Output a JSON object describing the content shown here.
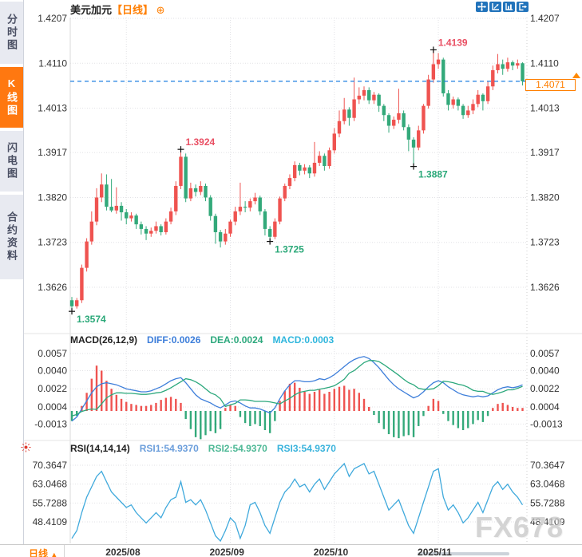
{
  "header": {
    "symbol": "美元加元",
    "period_tag": "【日线】",
    "add_icon": "⊕"
  },
  "toolbar": {
    "icons": [
      "pan-crosshair-icon",
      "axis-scale-icon",
      "axis-indicator-icon",
      "exit-icon"
    ]
  },
  "sidebar": {
    "items": [
      {
        "label": "分时图",
        "active": false
      },
      {
        "label": "K线图",
        "active": true
      },
      {
        "label": "闪电图",
        "active": false
      },
      {
        "label": "合约资料",
        "active": false
      }
    ]
  },
  "colors": {
    "up": "#ef5350",
    "down": "#33a97a",
    "accent_orange": "#ff7e00",
    "dashed_price_line": "#1e7fe0",
    "diff_line": "#3d7eda",
    "dea_line": "#2ca87c",
    "rsi_line": "#3fa9dc",
    "ann_red": "#e94f63",
    "ann_green": "#2aa878",
    "toolbar_blue": "#2173bb",
    "sidebar_active": "#ff7810"
  },
  "current_price": {
    "text": "1.4071",
    "price": 1.4071
  },
  "price_axis": {
    "labels": [
      "1.4207",
      "1.4110",
      "1.4013",
      "1.3917",
      "1.3820",
      "1.3723",
      "1.3626"
    ]
  },
  "x_axis": {
    "month_labels": [
      {
        "text": "2025/08",
        "index": 11
      },
      {
        "text": "2025/09",
        "index": 32
      },
      {
        "text": "2025/10",
        "index": 53
      },
      {
        "text": "2025/11",
        "index": 74
      }
    ]
  },
  "annotations": [
    {
      "text": "1.4139",
      "index": 73,
      "price": 1.4139,
      "side": "above",
      "color": "red"
    },
    {
      "text": "1.3924",
      "index": 22,
      "price": 1.3924,
      "side": "above",
      "color": "red"
    },
    {
      "text": "1.3887",
      "index": 69,
      "price": 1.3887,
      "side": "below",
      "color": "green"
    },
    {
      "text": "1.3725",
      "index": 40,
      "price": 1.3725,
      "side": "below",
      "color": "green"
    },
    {
      "text": "1.3574",
      "index": 0,
      "price": 1.3574,
      "side": "below",
      "color": "green"
    }
  ],
  "macd": {
    "header": "MACD(26,12,9)",
    "diff_label": "DIFF:0.0026",
    "dea_label": "DEA:0.0024",
    "macd_label": "MACD:0.0003",
    "axis": [
      "0.0057",
      "0.0040",
      "0.0022",
      "0.0004",
      "-0.0013"
    ]
  },
  "rsi": {
    "header": "RSI(14,14,14)",
    "rsi1_label": "RSI1:54.9370",
    "rsi2_label": "RSI2:54.9370",
    "rsi3_label": "RSI3:54.9370",
    "axis": [
      "70.3647",
      "63.0468",
      "55.7288",
      "48.4109"
    ]
  },
  "bottom_bar": {
    "period": "日线",
    "arrow": "▲"
  },
  "watermark": {
    "text": "FX678"
  },
  "chart_data": [
    {
      "type": "candlestick",
      "title": "美元加元 日线",
      "ylim": [
        1.3626,
        1.4207
      ],
      "y_ticks": [
        1.4207,
        1.411,
        1.4013,
        1.3917,
        1.382,
        1.3723,
        1.3626
      ],
      "marked_high": 1.4139,
      "marked_low": 1.3574,
      "last_close": 1.4071,
      "ohlc": [
        [
          1.3598,
          1.3605,
          1.3574,
          1.3585
        ],
        [
          1.3585,
          1.3603,
          1.358,
          1.3598
        ],
        [
          1.3598,
          1.3675,
          1.3592,
          1.3668
        ],
        [
          1.3668,
          1.3732,
          1.366,
          1.3725
        ],
        [
          1.3725,
          1.379,
          1.3718,
          1.3768
        ],
        [
          1.3768,
          1.384,
          1.376,
          1.382
        ],
        [
          1.382,
          1.3872,
          1.381,
          1.3848
        ],
        [
          1.3848,
          1.387,
          1.3792,
          1.38
        ],
        [
          1.38,
          1.386,
          1.3788,
          1.3792
        ],
        [
          1.3792,
          1.3842,
          1.3785,
          1.3802
        ],
        [
          1.3802,
          1.381,
          1.377,
          1.3788
        ],
        [
          1.3788,
          1.3795,
          1.3762,
          1.3775
        ],
        [
          1.3775,
          1.3788,
          1.3768,
          1.3781
        ],
        [
          1.3781,
          1.3785,
          1.3752,
          1.3762
        ],
        [
          1.3762,
          1.3768,
          1.374,
          1.3752
        ],
        [
          1.3752,
          1.3758,
          1.3728,
          1.3742
        ],
        [
          1.3742,
          1.3755,
          1.3735,
          1.3748
        ],
        [
          1.3748,
          1.3768,
          1.3742,
          1.3758
        ],
        [
          1.3758,
          1.3762,
          1.3738,
          1.3745
        ],
        [
          1.3745,
          1.3775,
          1.374,
          1.3768
        ],
        [
          1.3768,
          1.3798,
          1.3762,
          1.379
        ],
        [
          1.379,
          1.3855,
          1.3782,
          1.3845
        ],
        [
          1.3845,
          1.3924,
          1.3838,
          1.3908
        ],
        [
          1.3908,
          1.3915,
          1.381,
          1.3818
        ],
        [
          1.3818,
          1.3852,
          1.3812,
          1.384
        ],
        [
          1.384,
          1.3848,
          1.3822,
          1.3832
        ],
        [
          1.3832,
          1.3855,
          1.3825,
          1.3845
        ],
        [
          1.3845,
          1.385,
          1.3812,
          1.382
        ],
        [
          1.382,
          1.3825,
          1.377,
          1.378
        ],
        [
          1.378,
          1.3785,
          1.372,
          1.3745
        ],
        [
          1.3745,
          1.375,
          1.3712,
          1.3725
        ],
        [
          1.3725,
          1.3752,
          1.3718,
          1.3742
        ],
        [
          1.3742,
          1.3772,
          1.3735,
          1.3768
        ],
        [
          1.3768,
          1.38,
          1.376,
          1.379
        ],
        [
          1.379,
          1.3852,
          1.3782,
          1.38
        ],
        [
          1.38,
          1.3812,
          1.3788,
          1.3798
        ],
        [
          1.3798,
          1.3818,
          1.379,
          1.3812
        ],
        [
          1.3812,
          1.383,
          1.3805,
          1.382
        ],
        [
          1.382,
          1.3824,
          1.3782,
          1.379
        ],
        [
          1.379,
          1.3795,
          1.3738,
          1.3752
        ],
        [
          1.3752,
          1.3758,
          1.3725,
          1.3735
        ],
        [
          1.3735,
          1.3775,
          1.373,
          1.3768
        ],
        [
          1.3768,
          1.3822,
          1.3762,
          1.3818
        ],
        [
          1.3818,
          1.385,
          1.3812,
          1.3845
        ],
        [
          1.3845,
          1.387,
          1.3838,
          1.3862
        ],
        [
          1.3862,
          1.3898,
          1.3855,
          1.389
        ],
        [
          1.389,
          1.3895,
          1.3868,
          1.3878
        ],
        [
          1.3878,
          1.3892,
          1.387,
          1.3885
        ],
        [
          1.3885,
          1.389,
          1.3862,
          1.3872
        ],
        [
          1.3872,
          1.394,
          1.3865,
          1.3895
        ],
        [
          1.3895,
          1.392,
          1.3888,
          1.391
        ],
        [
          1.391,
          1.3915,
          1.3878,
          1.3888
        ],
        [
          1.3888,
          1.3928,
          1.3882,
          1.3922
        ],
        [
          1.3922,
          1.397,
          1.3915,
          1.3958
        ],
        [
          1.3958,
          1.4008,
          1.395,
          1.3985
        ],
        [
          1.3985,
          1.4035,
          1.3978,
          1.401
        ],
        [
          1.401,
          1.4015,
          1.3975,
          1.3992
        ],
        [
          1.3992,
          1.4079,
          1.3985,
          1.4032
        ],
        [
          1.4032,
          1.4058,
          1.4022,
          1.404
        ],
        [
          1.404,
          1.406,
          1.403,
          1.4052
        ],
        [
          1.4052,
          1.4058,
          1.4022,
          1.403
        ],
        [
          1.403,
          1.4048,
          1.4022,
          1.4042
        ],
        [
          1.4042,
          1.4045,
          1.4005,
          1.4018
        ],
        [
          1.4018,
          1.4022,
          1.3985,
          1.3998
        ],
        [
          1.3998,
          1.4002,
          1.396,
          1.3975
        ],
        [
          1.3975,
          1.3995,
          1.3968,
          1.3988
        ],
        [
          1.3988,
          1.4055,
          1.398,
          1.4002
        ],
        [
          1.4002,
          1.4008,
          1.3965,
          1.3972
        ],
        [
          1.3972,
          1.3978,
          1.392,
          1.3945
        ],
        [
          1.3945,
          1.395,
          1.3887,
          1.3928
        ],
        [
          1.3928,
          1.3975,
          1.3922,
          1.3965
        ],
        [
          1.3965,
          1.4022,
          1.3958,
          1.4018
        ],
        [
          1.4018,
          1.4085,
          1.4012,
          1.4075
        ],
        [
          1.4075,
          1.4139,
          1.4068,
          1.4108
        ],
        [
          1.4108,
          1.4132,
          1.4098,
          1.4118
        ],
        [
          1.4118,
          1.4122,
          1.4038,
          1.4045
        ],
        [
          1.4045,
          1.4052,
          1.4008,
          1.402
        ],
        [
          1.402,
          1.4038,
          1.4012,
          1.4032
        ],
        [
          1.4032,
          1.4036,
          1.4008,
          1.4018
        ],
        [
          1.4018,
          1.4022,
          1.399,
          1.3998
        ],
        [
          1.3998,
          1.4018,
          1.3992,
          1.4008
        ],
        [
          1.4008,
          1.4032,
          1.4,
          1.4022
        ],
        [
          1.4022,
          1.4052,
          1.4015,
          1.4042
        ],
        [
          1.4042,
          1.4045,
          1.4008,
          1.4028
        ],
        [
          1.4028,
          1.407,
          1.4022,
          1.406
        ],
        [
          1.406,
          1.4105,
          1.4052,
          1.4095
        ],
        [
          1.4095,
          1.413,
          1.4088,
          1.4108
        ],
        [
          1.4108,
          1.4118,
          1.4085,
          1.4098
        ],
        [
          1.4098,
          1.4122,
          1.4092,
          1.4112
        ],
        [
          1.4112,
          1.4116,
          1.4095,
          1.4105
        ],
        [
          1.4105,
          1.4118,
          1.4098,
          1.411
        ],
        [
          1.411,
          1.4112,
          1.4062,
          1.4071
        ]
      ]
    },
    {
      "type": "bar",
      "name": "MACD(26,12,9)",
      "scale": 0.0001,
      "ylim": [
        -0.0013,
        0.0057
      ],
      "y_ticks": [
        0.0057,
        0.004,
        0.0022,
        0.0004,
        -0.0013
      ],
      "dea_rule": "dea = diff - histogram/2",
      "diff": [
        -10,
        -6,
        2,
        10,
        18,
        24,
        27,
        28,
        27,
        26,
        24,
        22,
        21,
        20,
        19,
        19,
        20,
        22,
        24,
        27,
        30,
        32,
        33,
        28,
        22,
        16,
        12,
        10,
        8,
        5,
        3,
        6,
        9,
        10,
        8,
        5,
        3,
        3,
        2,
        0,
        -2,
        3,
        12,
        20,
        26,
        30,
        30,
        29,
        29,
        30,
        32,
        31,
        33,
        36,
        40,
        44,
        48,
        51,
        53,
        54,
        52,
        48,
        43,
        37,
        31,
        26,
        22,
        19,
        16,
        13,
        15,
        19,
        24,
        28,
        30,
        28,
        24,
        21,
        18,
        16,
        15,
        14,
        15,
        14,
        15,
        18,
        21,
        23,
        24,
        23,
        24,
        26
      ],
      "histogram": [
        -10,
        -5,
        5,
        18,
        32,
        45,
        40,
        30,
        22,
        16,
        12,
        9,
        7,
        6,
        5,
        5,
        6,
        8,
        11,
        13,
        14,
        12,
        8,
        -8,
        -18,
        -26,
        -28,
        -24,
        -20,
        -22,
        -18,
        3,
        6,
        5,
        -6,
        -12,
        -15,
        -13,
        -15,
        -19,
        -22,
        -10,
        10,
        20,
        27,
        28,
        23,
        19,
        17,
        19,
        21,
        17,
        19,
        22,
        24,
        25,
        21,
        22,
        18,
        12,
        4,
        -4,
        -12,
        -18,
        -23,
        -26,
        -27,
        -25,
        -24,
        -26,
        -15,
        -5,
        5,
        12,
        10,
        -3,
        -10,
        -14,
        -17,
        -19,
        -17,
        -13,
        -9,
        -11,
        -5,
        3,
        7,
        8,
        6,
        4,
        3,
        3
      ]
    },
    {
      "type": "line",
      "name": "RSI(14,14,14)",
      "ylim": [
        41,
        73
      ],
      "y_ticks": [
        70.3647,
        63.0468,
        55.7288,
        48.4109
      ],
      "values": [
        42,
        45,
        52,
        58,
        62,
        66,
        68,
        64,
        60,
        58,
        56,
        54,
        55,
        52,
        50,
        48,
        50,
        52,
        50,
        54,
        57,
        58,
        64,
        56,
        57,
        55,
        57,
        53,
        48,
        43,
        41,
        45,
        50,
        48,
        42,
        47,
        55,
        56,
        52,
        47,
        44,
        50,
        56,
        60,
        62,
        65,
        62,
        63,
        60,
        63,
        65,
        61,
        64,
        67,
        69,
        71,
        66,
        69,
        70,
        71,
        67,
        68,
        63,
        58,
        53,
        55,
        57,
        52,
        47,
        44,
        50,
        56,
        62,
        68,
        69,
        58,
        53,
        55,
        52,
        48,
        50,
        53,
        56,
        52,
        57,
        62,
        64,
        61,
        63,
        60,
        58,
        55
      ]
    }
  ]
}
